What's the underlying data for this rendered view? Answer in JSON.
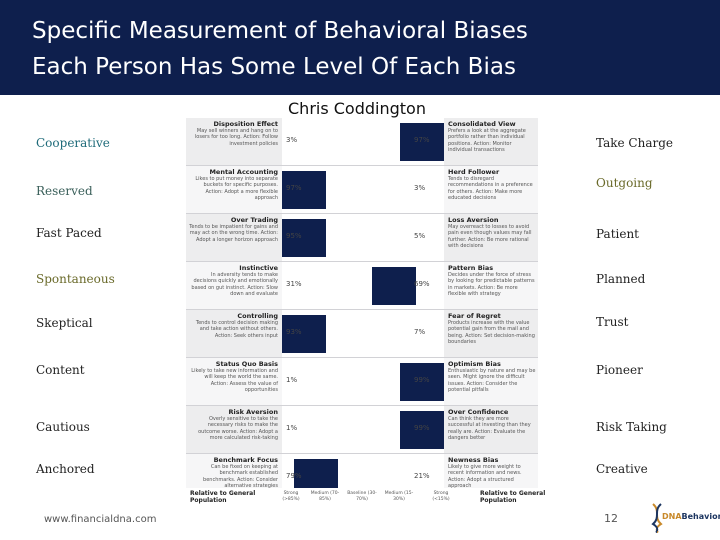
{
  "header": {
    "title_line1": "Specific Measurement of Behavioral Biases",
    "title_line2": "Each Person Has Some Level Of Each Bias",
    "bg_color": "#0e1f4d"
  },
  "person_name": "Chris Coddington",
  "left_labels": [
    {
      "text": "Cooperative",
      "color": "#1f6b7a"
    },
    {
      "text": "Reserved",
      "color": "#3a5f5a"
    },
    {
      "text": "Fast Paced",
      "color": "#222222"
    },
    {
      "text": "Spontaneous",
      "color": "#6a6a2a"
    },
    {
      "text": "Skeptical",
      "color": "#222222"
    },
    {
      "text": "Content",
      "color": "#222222"
    },
    {
      "text": "Cautious",
      "color": "#222222"
    },
    {
      "text": "Anchored",
      "color": "#222222"
    }
  ],
  "right_labels": [
    {
      "text": "Take Charge",
      "color": "#222222"
    },
    {
      "text": "Outgoing",
      "color": "#6a6a2a"
    },
    {
      "text": "Patient",
      "color": "#222222"
    },
    {
      "text": "Planned",
      "color": "#222222"
    },
    {
      "text": "Trust",
      "color": "#222222"
    },
    {
      "text": "Pioneer",
      "color": "#222222"
    },
    {
      "text": "Risk Taking",
      "color": "#222222"
    },
    {
      "text": "Creative",
      "color": "#222222"
    }
  ],
  "bias_rows": [
    {
      "left_title": "Disposition Effect",
      "left_text": "May sell winners and hang on to losers for too long. Action: Follow investment policies",
      "left_pct": "3%",
      "right_pct": "97%",
      "right_title": "Consolidated View",
      "right_text": "Prefers a look at the aggregate portfolio rather than individual positions. Action: Monitor individual transactions",
      "bar_value": 97
    },
    {
      "left_title": "Mental Accounting",
      "left_text": "Likes to put money into separate buckets for specific purposes. Action: Adopt a more flexible approach",
      "left_pct": "97%",
      "right_pct": "3%",
      "right_title": "Herd Follower",
      "right_text": "Tends to disregard recommendations in a preference for others. Action: Make more educated decisions",
      "bar_value": 3
    },
    {
      "left_title": "Over Trading",
      "left_text": "Tends to be impatient for gains and may act on the wrong time. Action: Adopt a longer horizon approach",
      "left_pct": "95%",
      "right_pct": "5%",
      "right_title": "Loss Aversion",
      "right_text": "May overreact to losses to avoid pain even though values may fall further. Action: Be more rational with decisions",
      "bar_value": 5
    },
    {
      "left_title": "Instinctive",
      "left_text": "In adversity tends to make decisions quickly and emotionally based on gut instinct. Action: Slow down and evaluate",
      "left_pct": "31%",
      "right_pct": "69%",
      "right_title": "Pattern Bias",
      "right_text": "Decides under the force of stress by looking for predictable patterns in markets. Action: Be more flexible with strategy",
      "bar_value": 69
    },
    {
      "left_title": "Controlling",
      "left_text": "Tends to control decision making and take action without others. Action: Seek others input",
      "left_pct": "93%",
      "right_pct": "7%",
      "right_title": "Fear of Regret",
      "right_text": "Products increase with the value potential gain from the mail and being. Action: Set decision-making boundaries",
      "bar_value": 7
    },
    {
      "left_title": "Status Quo Basis",
      "left_text": "Likely to take new information and will keep the world the same. Action: Assess the value of opportunities",
      "left_pct": "1%",
      "right_pct": "99%",
      "right_title": "Optimism Bias",
      "right_text": "Enthusiastic by nature and may be seen. Might ignore the difficult issues. Action: Consider the potential pitfalls",
      "bar_value": 99
    },
    {
      "left_title": "Risk Aversion",
      "left_text": "Overly sensitive to take the necessary risks to make the outcome worse. Action: Adopt a more calculated risk-taking",
      "left_pct": "1%",
      "right_pct": "99%",
      "right_title": "Over Confidence",
      "right_text": "Can think they are more successful at investing than they really are. Action: Evaluate the dangers better",
      "bar_value": 99
    },
    {
      "left_title": "Benchmark Focus",
      "left_text": "Can be fixed on keeping at benchmark established benchmarks. Action: Consider alternative strategies",
      "left_pct": "79%",
      "right_pct": "21%",
      "right_title": "Newness Bias",
      "right_text": "Likely to give more weight to recent information and news. Action: Adopt a structured approach",
      "bar_value": 21
    }
  ],
  "axis": {
    "left_end": "Relative to General Population",
    "right_end": "Relative to General Population",
    "ticks": [
      "Strong (>85%)",
      "Medium (70-85%)",
      "Baseline (30-70%)",
      "Medium (15-30%)",
      "Strong (<15%)"
    ]
  },
  "footer": {
    "url": "www.financialdna.com",
    "page_number": "12",
    "logo_word1": "DNA",
    "logo_word2": "Behavior"
  }
}
